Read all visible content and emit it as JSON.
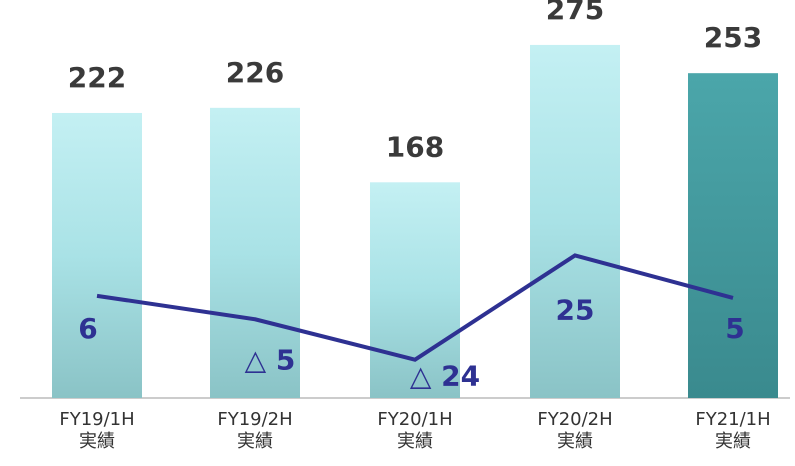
{
  "chart_data": {
    "type": "bar_line",
    "categories": [
      [
        "FY19/1H",
        "実績"
      ],
      [
        "FY19/2H",
        "実績"
      ],
      [
        "FY20/1H",
        "実績"
      ],
      [
        "FY20/2H",
        "実績"
      ],
      [
        "FY21/1H",
        "実績"
      ]
    ],
    "series": [
      {
        "type": "bar",
        "values": [
          222,
          226,
          168,
          275,
          253
        ],
        "colors": [
          "light",
          "light",
          "light",
          "light",
          "dark"
        ]
      },
      {
        "type": "line",
        "axis": "y2",
        "color": "#2e3192",
        "values": [
          6,
          -5,
          -24,
          25,
          5
        ],
        "value_labels": [
          "6",
          "△ 5",
          "△ 24",
          "25",
          "5"
        ]
      }
    ],
    "ylim": [
      0,
      310
    ],
    "y2lim": [
      -42,
      145
    ]
  }
}
